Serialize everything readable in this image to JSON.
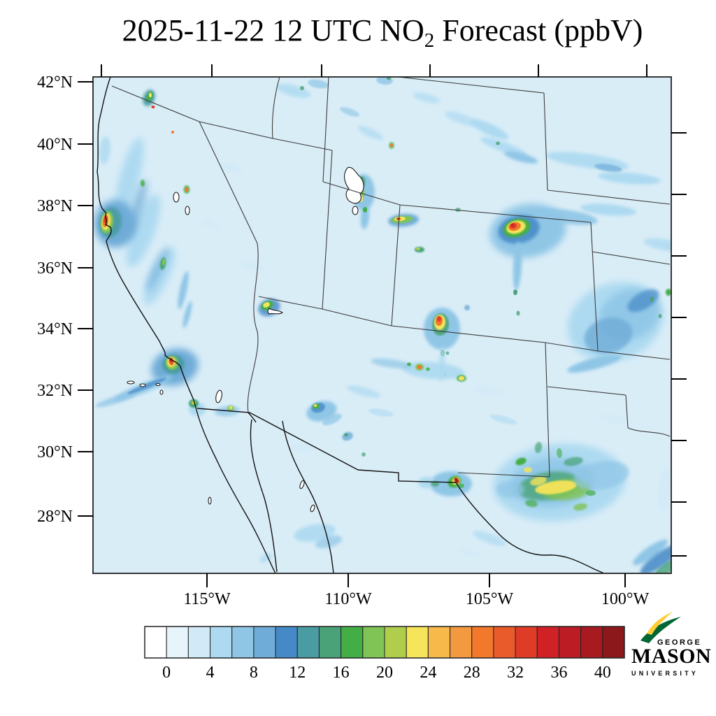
{
  "title": {
    "prefix": "2025-11-22 12 UTC NO",
    "subscript": "2",
    "suffix": " Forecast (ppbV)"
  },
  "axes": {
    "lat_labels": [
      "42°N",
      "40°N",
      "38°N",
      "36°N",
      "34°N",
      "32°N",
      "30°N",
      "28°N"
    ],
    "lon_labels": [
      "115°W",
      "110°W",
      "105°W",
      "100°W"
    ]
  },
  "colorbar": {
    "labels": [
      "0",
      "4",
      "8",
      "12",
      "16",
      "20",
      "24",
      "28",
      "32",
      "36",
      "40"
    ],
    "colors": [
      "#FFFFFF",
      "#E8F4FB",
      "#D2EAF7",
      "#ADDAF1",
      "#8FC6E6",
      "#6FACD8",
      "#4589C6",
      "#4A9BA2",
      "#4AA378",
      "#44AE46",
      "#80C455",
      "#B0CE4C",
      "#F6E45A",
      "#F6B94A",
      "#F39A40",
      "#F2782C",
      "#EA5B2B",
      "#DF3C27",
      "#D02127",
      "#BC1C23",
      "#A61A20",
      "#8C181C"
    ]
  },
  "logo": {
    "george": "GEORGE",
    "mason": "MASON",
    "university": "UNIVERSITY",
    "green": "#006633",
    "gold": "#FFCC33"
  },
  "chart_data": {
    "type": "heatmap",
    "title": "2025-11-22 12 UTC NO2 Forecast (ppbV)",
    "units": "ppbV",
    "x_tick_labels": [
      "115°W",
      "110°W",
      "105°W",
      "100°W"
    ],
    "y_tick_labels": [
      "42°N",
      "40°N",
      "38°N",
      "36°N",
      "34°N",
      "32°N",
      "30°N",
      "28°N"
    ],
    "colorbar_labeled_levels": [
      0,
      4,
      8,
      12,
      16,
      20,
      24,
      28,
      32,
      36,
      40
    ],
    "colorbar_cell_count": 22,
    "colorbar_cell_step": 2,
    "legend_position": "bottom",
    "notes": "Filled NO2 concentration field over the southwestern United States; background near 0-2 ppbV with plumes 2-8 ppbV and urban/industrial hotspots exceeding 30-40 ppbV (San Francisco Bay, Los Angeles, Salt Lake City, Denver, Albuquerque, El Paso, Permian Basin)"
  }
}
